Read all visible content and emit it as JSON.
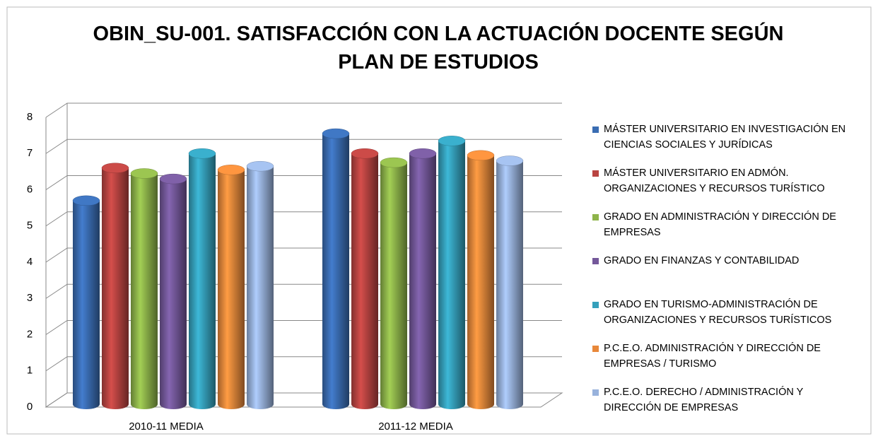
{
  "chart_data": {
    "type": "bar3d",
    "title": "OBIN_SU-001. SATISFACCIÓN CON LA ACTUACIÓN DOCENTE SEGÚN PLAN DE ESTUDIOS",
    "categories": [
      "2010-11 MEDIA",
      "2011-12 MEDIA"
    ],
    "series": [
      {
        "name": "MÁSTER UNIVERSITARIO EN INVESTIGACIÓN EN CIENCIAS SOCIALES Y JURÍDICAS",
        "color": "#3a6db3",
        "values": [
          5.7,
          7.55
        ]
      },
      {
        "name": "MÁSTER UNIVERSITARIO EN ADMÓN. ORGANIZACIONES Y RECURSOS TURÍSTICO",
        "color": "#b94441",
        "values": [
          6.6,
          7.0
        ]
      },
      {
        "name": "GRADO EN ADMINISTRACIÓN Y DIRECCIÓN DE EMPRESAS",
        "color": "#8eb44a",
        "values": [
          6.45,
          6.75
        ]
      },
      {
        "name": "GRADO EN FINANZAS Y CONTABILIDAD",
        "color": "#74589a",
        "values": [
          6.3,
          7.0
        ]
      },
      {
        "name": "GRADO EN TURISMO-ADMINISTRACIÓN DE ORGANIZACIONES Y RECURSOS TURÍSTICOS",
        "color": "#35a0bb",
        "values": [
          7.0,
          7.35
        ]
      },
      {
        "name": "P.C.E.O. ADMINISTRACIÓN Y DIRECCIÓN DE EMPRESAS / TURISMO",
        "color": "#e8883a",
        "values": [
          6.55,
          6.95
        ]
      },
      {
        "name": "P.C.E.O. DERECHO / ADMINISTRACIÓN Y DIRECCIÓN DE EMPRESAS",
        "color": "#98b2dc",
        "values": [
          6.65,
          6.8
        ]
      }
    ],
    "ylim": [
      0,
      8
    ],
    "yticks": [
      0,
      1,
      2,
      3,
      4,
      5,
      6,
      7,
      8
    ],
    "grid": true
  }
}
